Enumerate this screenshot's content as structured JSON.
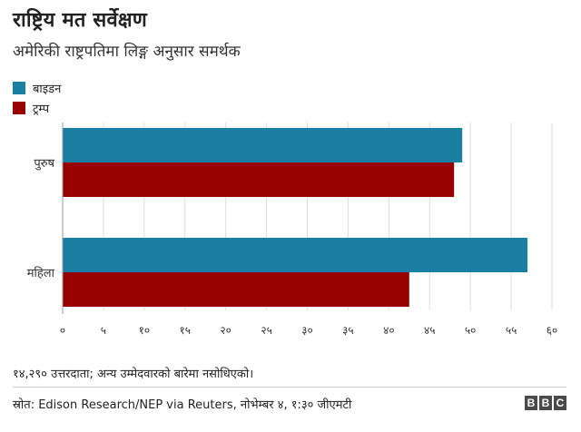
{
  "header": {
    "title": "राष्ट्रिय मत सर्वेक्षण",
    "subtitle": "अमेरिकी राष्ट्रपतिमा लिङ्ग अनुसार समर्थक"
  },
  "legend": {
    "items": [
      {
        "label": "बाइडन",
        "color": "#1b7fa3"
      },
      {
        "label": "ट्रम्प",
        "color": "#990000"
      }
    ]
  },
  "chart_data": {
    "type": "bar",
    "orientation": "horizontal",
    "categories": [
      "पुरुष",
      "महिला"
    ],
    "series": [
      {
        "name": "बाइडन",
        "color": "#1b7fa3",
        "values": [
          49,
          57
        ]
      },
      {
        "name": "ट्रम्प",
        "color": "#990000",
        "values": [
          48,
          42.5
        ]
      }
    ],
    "xlim": [
      0,
      60
    ],
    "xticks": [
      0,
      5,
      10,
      15,
      20,
      25,
      30,
      35,
      40,
      45,
      50,
      55,
      60
    ],
    "xtick_labels": [
      "०",
      "५",
      "१०",
      "१५",
      "२०",
      "२५",
      "३०",
      "३५",
      "४०",
      "४५",
      "५०",
      "५५",
      "६०"
    ],
    "grid": true,
    "legend_position": "top-left"
  },
  "footer": {
    "note": "१४,२९० उत्तरदाता; अन्य उम्मेदवारको बारेमा नसोधिएको।",
    "source": "स्रोत: Edison Research/NEP via Reuters, नोभेम्बर ४, १:३० जीएमटी",
    "logo_letters": [
      "B",
      "B",
      "C"
    ]
  }
}
